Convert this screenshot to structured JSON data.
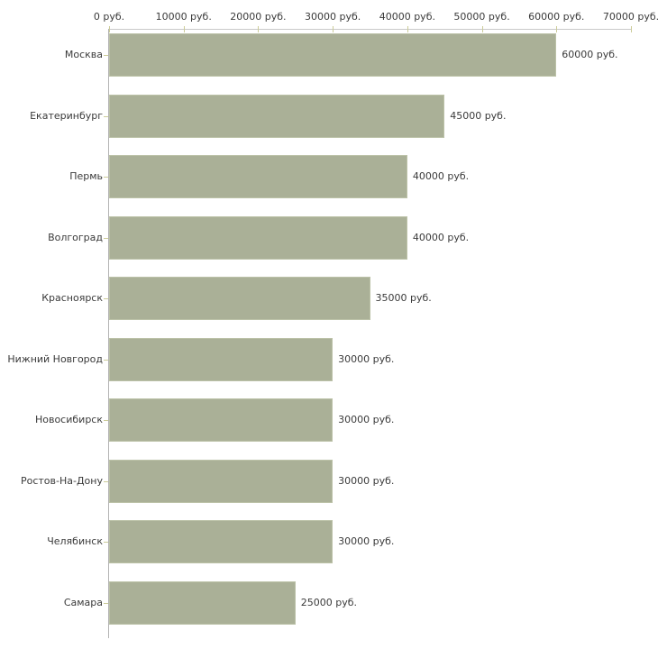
{
  "chart_data": {
    "type": "bar",
    "orientation": "horizontal",
    "title": "",
    "xlabel": "",
    "ylabel": "",
    "xlim": [
      0,
      70000
    ],
    "grid": false,
    "legend": null,
    "unit_suffix": " руб.",
    "x_tick_labels": [
      "0 руб.",
      "10000 руб.",
      "20000 руб.",
      "30000 руб.",
      "40000 руб.",
      "50000 руб.",
      "60000 руб.",
      "70000 руб."
    ],
    "x_tick_values": [
      0,
      10000,
      20000,
      30000,
      40000,
      50000,
      60000,
      70000
    ],
    "categories": [
      "Москва",
      "Екатеринбург",
      "Пермь",
      "Волгоград",
      "Красноярск",
      "Нижний Новгород",
      "Новосибирск",
      "Ростов-На-Дону",
      "Челябинск",
      "Самара"
    ],
    "values": [
      60000,
      45000,
      40000,
      40000,
      35000,
      30000,
      30000,
      30000,
      30000,
      25000
    ],
    "value_labels": [
      "60000 руб.",
      "45000 руб.",
      "40000 руб.",
      "40000 руб.",
      "35000 руб.",
      "30000 руб.",
      "30000 руб.",
      "30000 руб.",
      "30000 руб.",
      "25000 руб."
    ],
    "style": {
      "bar_color": "#aab097",
      "bar_border_color": "#bcc2a8",
      "h_axis_line_color": "#c9c9c9",
      "v_axis_line_color": "#b3b3b3",
      "tick_color": "#cccc99",
      "text_color": "#3a3a3a",
      "background_color": "#ffffff"
    }
  }
}
